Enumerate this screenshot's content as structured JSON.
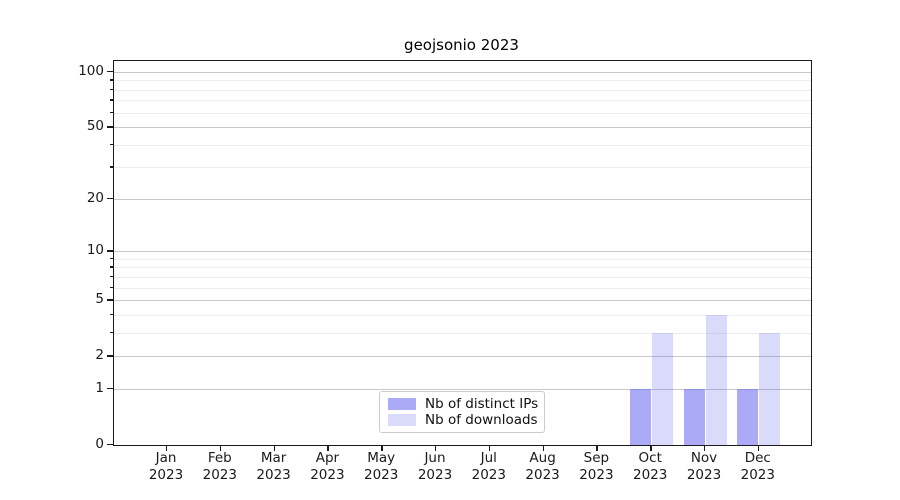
{
  "title": "geojsonio 2023",
  "chart_data": {
    "type": "bar",
    "title": "geojsonio 2023",
    "x_months": [
      "Jan",
      "Feb",
      "Mar",
      "Apr",
      "May",
      "Jun",
      "Jul",
      "Aug",
      "Sep",
      "Oct",
      "Nov",
      "Dec"
    ],
    "x_year": "2023",
    "series": [
      {
        "name": "Nb of distinct IPs",
        "color_hex": "#aaaaf7",
        "color_rgba": "rgba(85,85,238,0.5)",
        "values": [
          0,
          0,
          0,
          0,
          0,
          0,
          0,
          0,
          0,
          1,
          1,
          1
        ]
      },
      {
        "name": "Nb of downloads",
        "color_hex": "#dadaf9",
        "color_rgba": "rgba(85,85,238,0.22)",
        "values": [
          0,
          0,
          0,
          0,
          0,
          0,
          0,
          0,
          0,
          3,
          4,
          3
        ]
      }
    ],
    "yscale": "log1p",
    "ylim": [
      0,
      115
    ],
    "y_tick_labels": [
      "0",
      "1",
      "2",
      "5",
      "10",
      "20",
      "50",
      "100"
    ],
    "y_tick_values": [
      0,
      1,
      2,
      5,
      10,
      20,
      50,
      100
    ],
    "y_minor_tick_values": [
      3,
      4,
      6,
      7,
      8,
      9,
      30,
      40,
      60,
      70,
      80,
      90
    ],
    "grid": "horizontal-only",
    "legend_position": "lower center",
    "colors": {
      "major_grid": "#c8c8c8",
      "minor_grid": "#ececec",
      "axis": "#1a1a1a",
      "text": "#1a1a1a",
      "background": "#ffffff"
    }
  }
}
